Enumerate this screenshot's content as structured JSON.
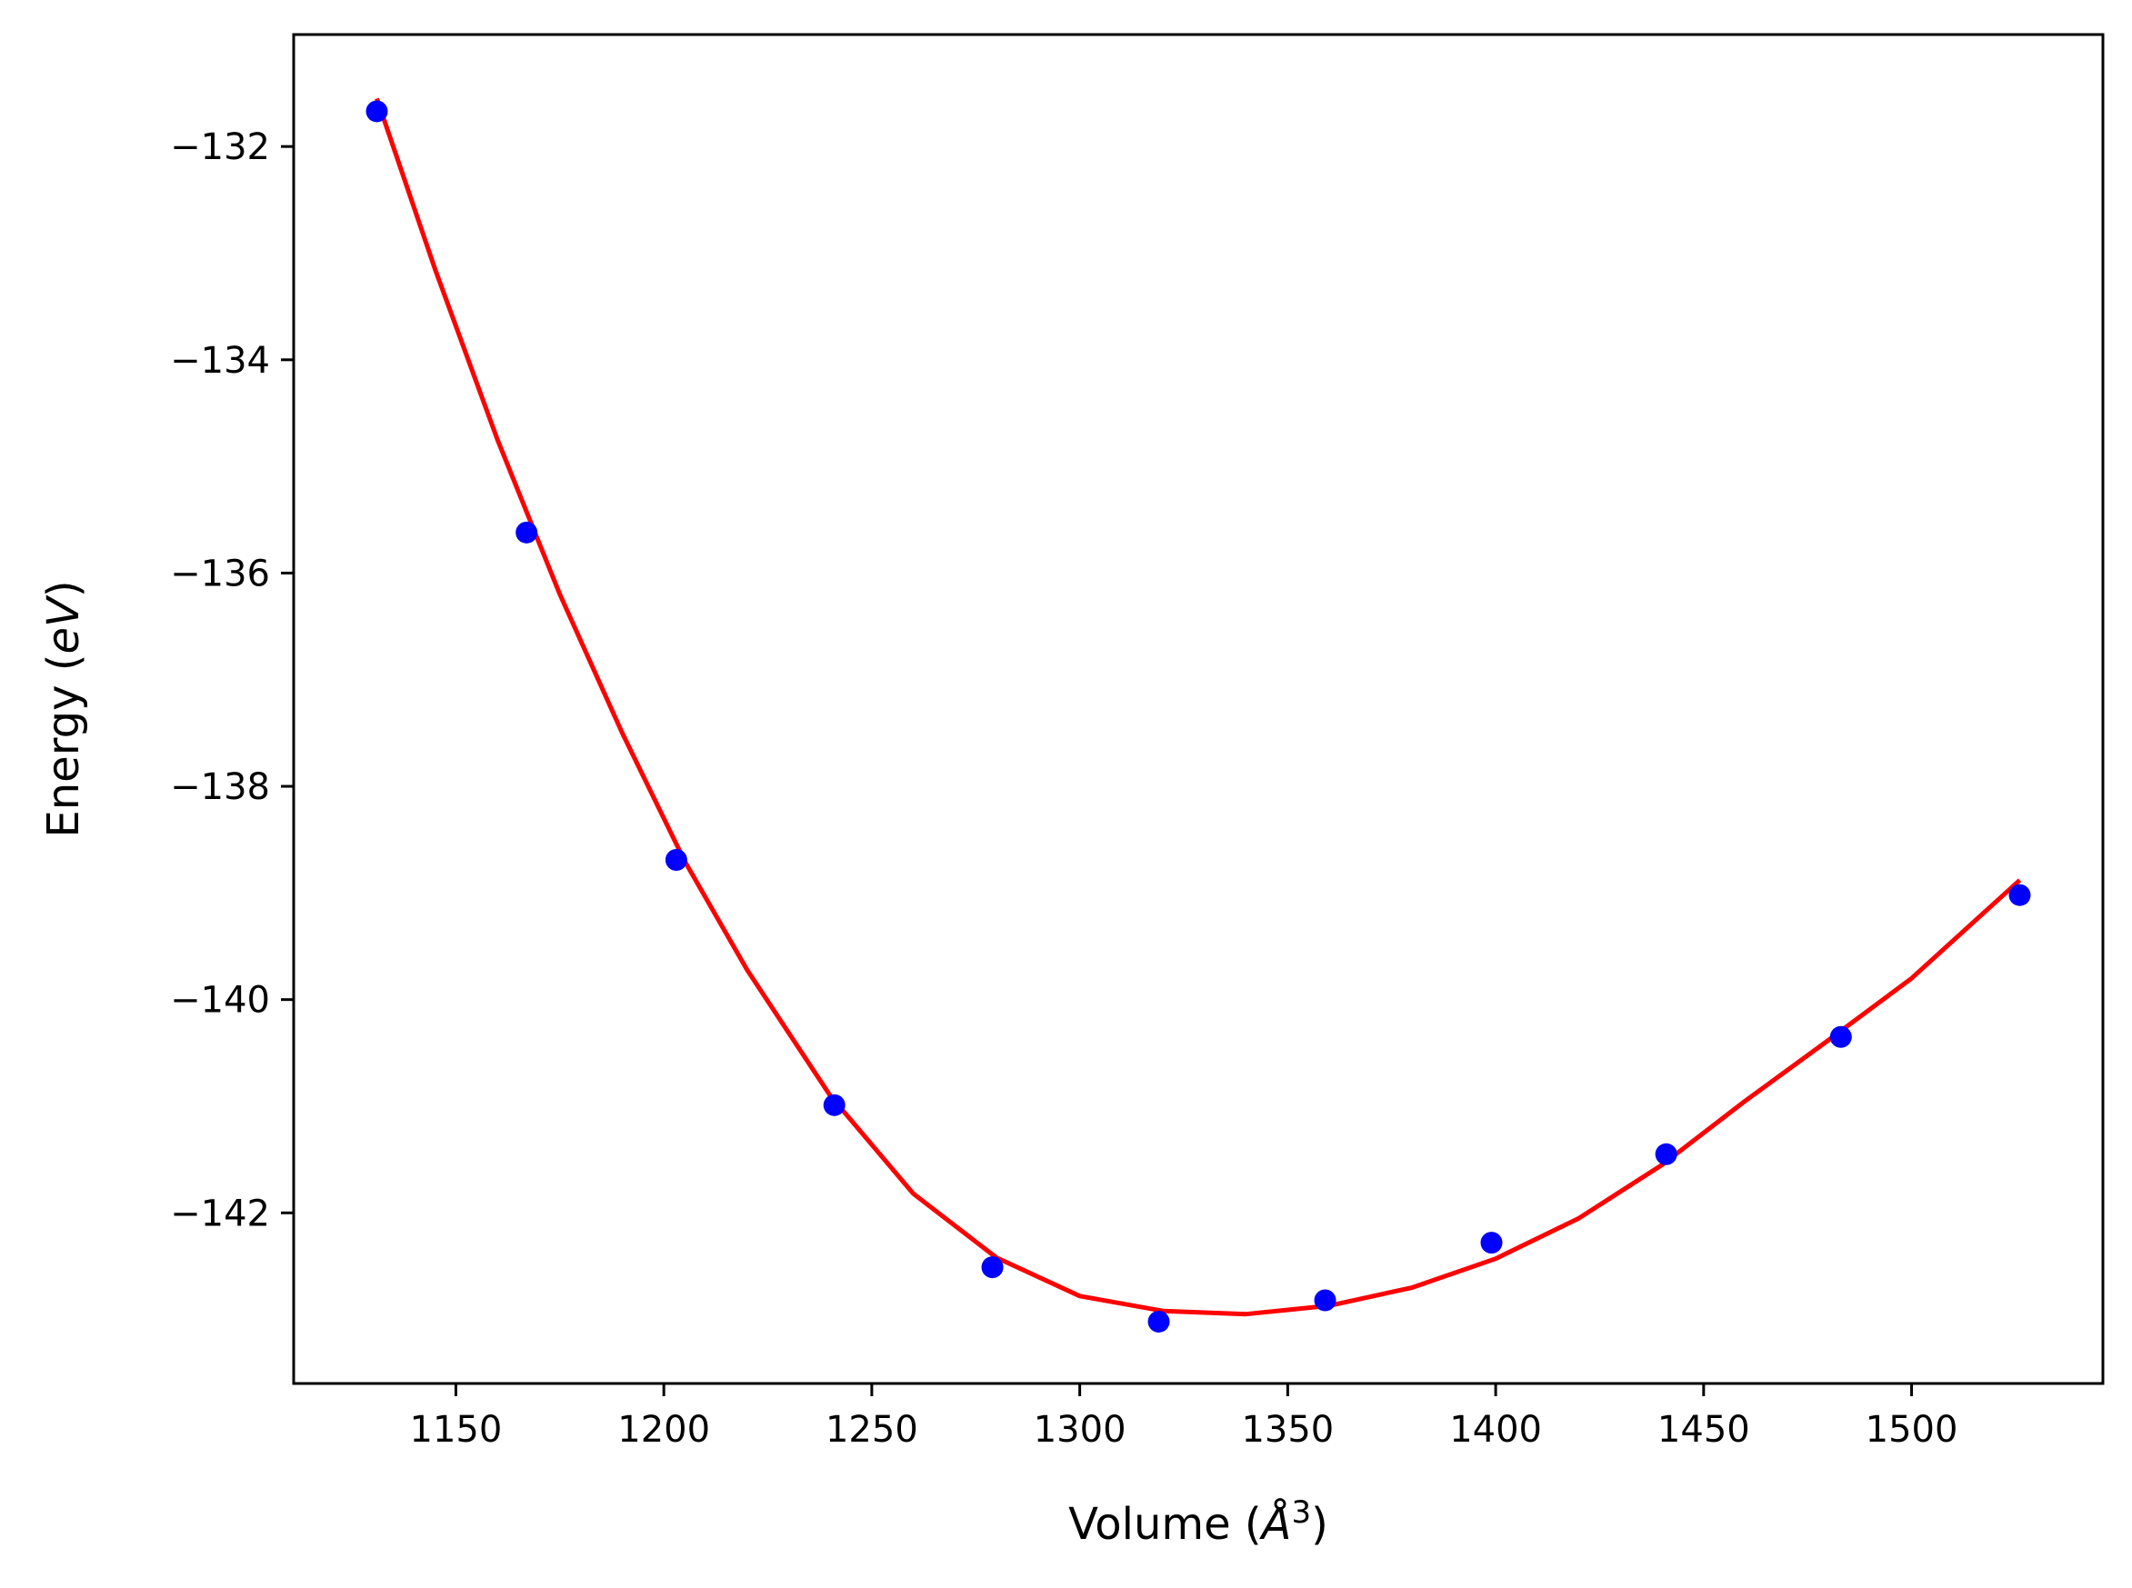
{
  "chart_data": {
    "type": "scatter",
    "title": "",
    "xlabel": {
      "prefix": "Volume (",
      "symbol": "Å",
      "superscript": "3",
      "suffix": ")"
    },
    "ylabel": {
      "prefix": "Energy (",
      "symbol": "eV",
      "suffix": ")"
    },
    "xlim": [
      1111,
      1546
    ],
    "ylim": [
      -143.6,
      -130.95
    ],
    "xticks": [
      1150,
      1200,
      1250,
      1300,
      1350,
      1400,
      1450,
      1500
    ],
    "xtick_labels": [
      "1150",
      "1200",
      "1250",
      "1300",
      "1350",
      "1400",
      "1450",
      "1500"
    ],
    "yticks": [
      -132,
      -134,
      -136,
      -138,
      -140,
      -142
    ],
    "ytick_labels": [
      "−132",
      "−134",
      "−136",
      "−138",
      "−140",
      "−142"
    ],
    "grid": false,
    "series": [
      {
        "kind": "points",
        "color": "#0000ff",
        "x": [
          1131,
          1167,
          1203,
          1241,
          1279,
          1319,
          1359,
          1399,
          1441,
          1483,
          1526
        ],
        "y": [
          -131.67,
          -135.62,
          -138.69,
          -140.99,
          -142.51,
          -143.02,
          -142.82,
          -142.28,
          -141.45,
          -140.35,
          -139.02
        ]
      },
      {
        "kind": "fit-line",
        "color": "#ff0000",
        "x": [
          1131,
          1145,
          1160,
          1175,
          1190,
          1205,
          1220,
          1240,
          1260,
          1280,
          1300,
          1320,
          1340,
          1360,
          1380,
          1400,
          1420,
          1440,
          1460,
          1480,
          1500,
          1526
        ],
        "y": [
          -131.55,
          -133.15,
          -134.75,
          -136.2,
          -137.5,
          -138.7,
          -139.72,
          -140.9,
          -141.82,
          -142.42,
          -142.78,
          -142.92,
          -142.95,
          -142.87,
          -142.7,
          -142.43,
          -142.05,
          -141.55,
          -140.95,
          -140.38,
          -139.8,
          -138.88
        ]
      }
    ]
  }
}
